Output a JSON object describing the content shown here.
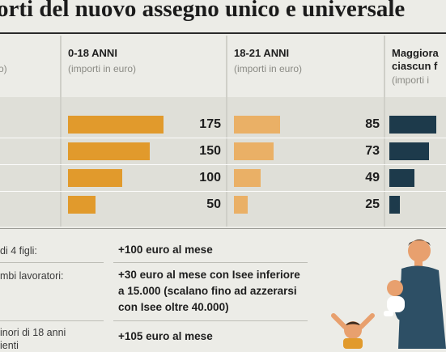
{
  "title": "orti del nuovo assegno unico e universale",
  "colors": {
    "orange_dark": "#e19a2c",
    "orange_light": "#eab066",
    "navy": "#1d3a4b",
    "skin": "#e8a06e",
    "shirt": "#2d4f65"
  },
  "columns": [
    {
      "head": "",
      "head2": "",
      "sub": "o)"
    },
    {
      "head": "0-18 ANNI",
      "head2": "",
      "sub": "(importi in euro)"
    },
    {
      "head": "18-21 ANNI",
      "head2": "",
      "sub": "(importi in euro)"
    },
    {
      "head": "Maggiora",
      "head2": "ciascun f",
      "sub": "(importi i"
    }
  ],
  "chart_data": {
    "type": "bar",
    "title": "orti del nuovo assegno unico e universale",
    "series": [
      {
        "name": "0-18 ANNI",
        "unit": "euro",
        "values": [
          175,
          150,
          100,
          50
        ]
      },
      {
        "name": "18-21 ANNI",
        "unit": "euro",
        "values": [
          85,
          73,
          49,
          25
        ]
      },
      {
        "name": "Maggiora ciascun f",
        "unit": "euro",
        "values": [
          55,
          46,
          29,
          12
        ]
      }
    ],
    "data_labels_shown": [
      true,
      true,
      false
    ],
    "value_ranges": {
      "0-18 ANNI": [
        0,
        175
      ],
      "18-21 ANNI": [
        0,
        85
      ],
      "Maggiora ciascun f": [
        0,
        55
      ]
    },
    "orientation": "horizontal",
    "grid": false,
    "legend": "none"
  },
  "bonuses": [
    {
      "label": "di 4 figli:",
      "text": [
        "+100 euro al mese"
      ]
    },
    {
      "label": "mbi lavoratori:",
      "text": [
        "+30 euro al mese con Isee inferiore",
        "a 15.000 (scalano fino ad azzerarsi",
        "con Isee oltre 40.000)"
      ]
    },
    {
      "label": "inori di 18 anni",
      "label2": "ienti",
      "text": [
        "+105 euro al mese"
      ]
    }
  ],
  "illustration": {
    "name": "family-illustration"
  }
}
